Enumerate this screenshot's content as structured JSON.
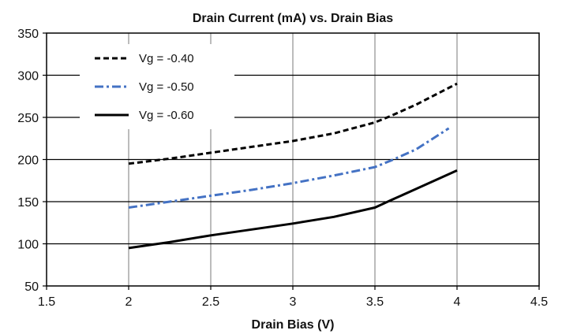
{
  "chart_data": {
    "type": "line",
    "title": "Drain Current (mA) vs. Drain Bias",
    "xlabel": "Drain Bias (V)",
    "ylabel": "",
    "xlim": [
      1.5,
      4.5
    ],
    "ylim": [
      50,
      350
    ],
    "xticks": [
      1.5,
      2,
      2.5,
      3,
      3.5,
      4,
      4.5
    ],
    "yticks": [
      50,
      100,
      150,
      200,
      250,
      300,
      350
    ],
    "x_tick_labels": [
      "1.5",
      "2",
      "2.5",
      "3",
      "3.5",
      "4",
      "4.5"
    ],
    "y_tick_labels": [
      "50",
      "100",
      "150",
      "200",
      "250",
      "300",
      "350"
    ],
    "grid": "vertical and horizontal at ticks",
    "legend_position": "top-left",
    "series": [
      {
        "name": "Vg = -0.40",
        "style": "dashed",
        "color": "#000000",
        "x": [
          2.0,
          2.25,
          2.5,
          2.75,
          3.0,
          3.25,
          3.5,
          3.6,
          3.75,
          4.0
        ],
        "y": [
          195,
          201,
          208,
          215,
          222,
          231,
          244,
          252,
          265,
          290
        ]
      },
      {
        "name": "Vg = -0.50",
        "style": "dash-dot",
        "color": "#4472C4",
        "x": [
          2.0,
          2.25,
          2.5,
          2.75,
          3.0,
          3.25,
          3.5,
          3.6,
          3.75,
          3.95
        ],
        "y": [
          143,
          150,
          157,
          164,
          172,
          181,
          191,
          199,
          212,
          237
        ]
      },
      {
        "name": "Vg = -0.60",
        "style": "solid",
        "color": "#000000",
        "x": [
          2.0,
          2.25,
          2.5,
          2.75,
          3.0,
          3.25,
          3.5,
          3.6,
          3.75,
          4.0
        ],
        "y": [
          95,
          102,
          110,
          117,
          124,
          132,
          143,
          152,
          165,
          187
        ]
      }
    ]
  }
}
